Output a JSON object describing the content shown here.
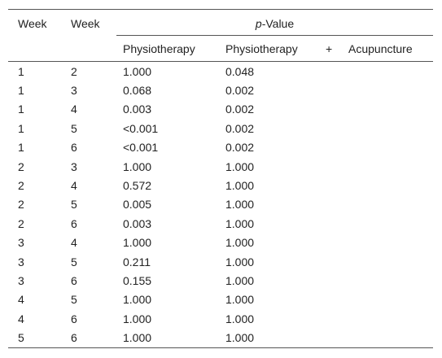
{
  "header": {
    "week1": "Week",
    "week2": "Week",
    "pvalue_italic": "p",
    "pvalue_rest": "-Value",
    "sub": [
      "Physiotherapy",
      "Physiotherapy",
      "+",
      "Acupuncture"
    ]
  },
  "table": {
    "rows": [
      [
        "1",
        "2",
        "1.000",
        "0.048"
      ],
      [
        "1",
        "3",
        "0.068",
        "0.002"
      ],
      [
        "1",
        "4",
        "0.003",
        "0.002"
      ],
      [
        "1",
        "5",
        "<0.001",
        "0.002"
      ],
      [
        "1",
        "6",
        "<0.001",
        "0.002"
      ],
      [
        "2",
        "3",
        "1.000",
        "1.000"
      ],
      [
        "2",
        "4",
        "0.572",
        "1.000"
      ],
      [
        "2",
        "5",
        "0.005",
        "1.000"
      ],
      [
        "2",
        "6",
        "0.003",
        "1.000"
      ],
      [
        "3",
        "4",
        "1.000",
        "1.000"
      ],
      [
        "3",
        "5",
        "0.211",
        "1.000"
      ],
      [
        "3",
        "6",
        "0.155",
        "1.000"
      ],
      [
        "4",
        "5",
        "1.000",
        "1.000"
      ],
      [
        "4",
        "6",
        "1.000",
        "1.000"
      ],
      [
        "5",
        "6",
        "1.000",
        "1.000"
      ]
    ]
  }
}
